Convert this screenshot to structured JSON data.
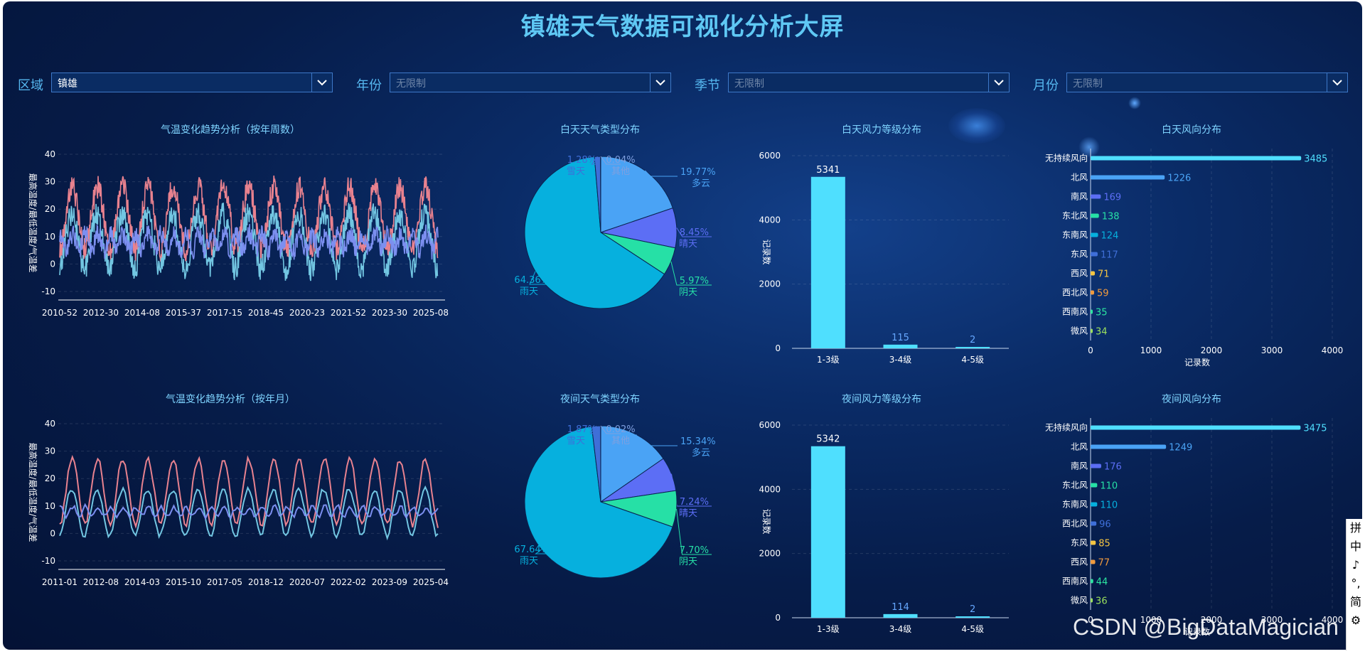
{
  "title": "镇雄天气数据可视化分析大屏",
  "filters": [
    {
      "label": "区域",
      "value": "镇雄",
      "placeholder": false
    },
    {
      "label": "年份",
      "value": "无限制",
      "placeholder": true
    },
    {
      "label": "季节",
      "value": "无限制",
      "placeholder": true
    },
    {
      "label": "月份",
      "value": "无限制",
      "placeholder": true
    }
  ],
  "colors": {
    "max_temp": "#e8828f",
    "min_temp": "#72c6e2",
    "diff_temp": "#7c8ff0",
    "bar": "#4fdffe",
    "accent": "#5fc8f4"
  },
  "chart_data": [
    {
      "id": "temp_week",
      "type": "line",
      "title": "气温变化趋势分析（按年周数）",
      "ylabel": "最高温度/最低温度/气温差",
      "ylim": [
        -10,
        40
      ],
      "yticks": [
        -10,
        0,
        10,
        20,
        30,
        40
      ],
      "xticks": [
        "2010-52",
        "2012-30",
        "2014-08",
        "2015-37",
        "2017-15",
        "2018-45",
        "2020-23",
        "2021-52",
        "2023-30",
        "2025-08"
      ],
      "series": [
        {
          "name": "最高温度",
          "summary": {
            "cycles": 15,
            "summer_peak": 28,
            "winter_low": 5
          }
        },
        {
          "name": "最低温度",
          "summary": {
            "cycles": 15,
            "summer_peak": 18,
            "winter_low": -2
          }
        },
        {
          "name": "气温差",
          "summary": {
            "mean": 8,
            "range": [
              3,
              13
            ]
          }
        }
      ]
    },
    {
      "id": "temp_month",
      "type": "line",
      "title": "气温变化趋势分析（按年月）",
      "ylabel": "最高温度/最低温度/气温差",
      "ylim": [
        -10,
        40
      ],
      "yticks": [
        -10,
        0,
        10,
        20,
        30,
        40
      ],
      "xticks": [
        "2011-01",
        "2012-08",
        "2014-03",
        "2015-10",
        "2017-05",
        "2018-12",
        "2020-07",
        "2022-02",
        "2023-09",
        "2025-04"
      ],
      "series": [
        {
          "name": "最高温度",
          "summary": {
            "cycles": 15,
            "summer_peak": 27,
            "winter_low": 3
          }
        },
        {
          "name": "最低温度",
          "summary": {
            "cycles": 15,
            "summer_peak": 16,
            "winter_low": -1
          }
        },
        {
          "name": "气温差",
          "summary": {
            "mean": 8,
            "range": [
              5,
              11
            ]
          }
        }
      ]
    },
    {
      "id": "day_weather",
      "type": "pie",
      "title": "白天天气类型分布",
      "slices": [
        {
          "name": "多云",
          "value": 19.77,
          "label": "19.77%",
          "color": "#4aa3f5"
        },
        {
          "name": "晴天",
          "value": 8.45,
          "label": "8.45%",
          "color": "#5c6ef5"
        },
        {
          "name": "阴天",
          "value": 5.97,
          "label": "5.97%",
          "color": "#26e0a6"
        },
        {
          "name": "雨天",
          "value": 64.36,
          "label": "64.36%",
          "color": "#06b0de"
        },
        {
          "name": "雪天",
          "value": 1.28,
          "label": "1.28%",
          "color": "#3f6fd8"
        },
        {
          "name": "其他",
          "value": 0.04,
          "label": "0.04%",
          "color": "#7fa0e0"
        }
      ]
    },
    {
      "id": "night_weather",
      "type": "pie",
      "title": "夜间天气类型分布",
      "slices": [
        {
          "name": "多云",
          "value": 15.34,
          "label": "15.34%",
          "color": "#4aa3f5"
        },
        {
          "name": "晴天",
          "value": 7.24,
          "label": "7.24%",
          "color": "#5c6ef5"
        },
        {
          "name": "阴天",
          "value": 7.7,
          "label": "7.70%",
          "color": "#26e0a6"
        },
        {
          "name": "雨天",
          "value": 67.64,
          "label": "67.64%",
          "color": "#06b0de"
        },
        {
          "name": "雪天",
          "value": 1.87,
          "label": "1.87%",
          "color": "#3f6fd8"
        },
        {
          "name": "其他",
          "value": 0.02,
          "label": "0.02%",
          "color": "#7fa0e0"
        }
      ]
    },
    {
      "id": "day_wind_level",
      "type": "bar",
      "title": "白天风力等级分布",
      "ylabel": "记录数",
      "ylim": [
        0,
        6000
      ],
      "yticks": [
        0,
        2000,
        4000,
        6000
      ],
      "categories": [
        "1-3级",
        "3-4级",
        "4-5级"
      ],
      "values": [
        5341,
        115,
        2
      ]
    },
    {
      "id": "night_wind_level",
      "type": "bar",
      "title": "夜间风力等级分布",
      "ylabel": "记录数",
      "ylim": [
        0,
        6000
      ],
      "yticks": [
        0,
        2000,
        4000,
        6000
      ],
      "categories": [
        "1-3级",
        "3-4级",
        "4-5级"
      ],
      "values": [
        5342,
        114,
        2
      ]
    },
    {
      "id": "day_wind_dir",
      "type": "bar",
      "orientation": "horizontal",
      "title": "白天风向分布",
      "xlabel": "记录数",
      "xlim": [
        0,
        4000
      ],
      "xticks": [
        0,
        1000,
        2000,
        3000,
        4000
      ],
      "categories": [
        "无持续风向",
        "北风",
        "南风",
        "东北风",
        "东南风",
        "东风",
        "西风",
        "西北风",
        "西南风",
        "微风"
      ],
      "values": [
        3485,
        1226,
        169,
        138,
        124,
        117,
        71,
        59,
        35,
        34
      ],
      "bar_colors": [
        "#4fdffe",
        "#4aa3f5",
        "#5c6ef5",
        "#26e0a6",
        "#06b0de",
        "#3f6fd8",
        "#f5c542",
        "#f09a3e",
        "#2ce6a0",
        "#9be15d"
      ]
    },
    {
      "id": "night_wind_dir",
      "type": "bar",
      "orientation": "horizontal",
      "title": "夜间风向分布",
      "xlabel": "记录数",
      "xlim": [
        0,
        4000
      ],
      "xticks": [
        0,
        1000,
        2000,
        3000,
        4000
      ],
      "categories": [
        "无持续风向",
        "北风",
        "南风",
        "东北风",
        "东南风",
        "西北风",
        "东风",
        "西风",
        "西南风",
        "微风"
      ],
      "values": [
        3475,
        1249,
        176,
        110,
        110,
        96,
        85,
        77,
        44,
        36
      ],
      "bar_colors": [
        "#4fdffe",
        "#4aa3f5",
        "#5c6ef5",
        "#26e0a6",
        "#06b0de",
        "#3f6fd8",
        "#f5c542",
        "#f09a3e",
        "#2ce6a0",
        "#9be15d"
      ]
    }
  ],
  "watermark": "CSDN @BigDataMagician",
  "sidebar": {
    "items": [
      "拼",
      "中",
      "♪",
      "°,",
      "简",
      "⚙"
    ]
  }
}
